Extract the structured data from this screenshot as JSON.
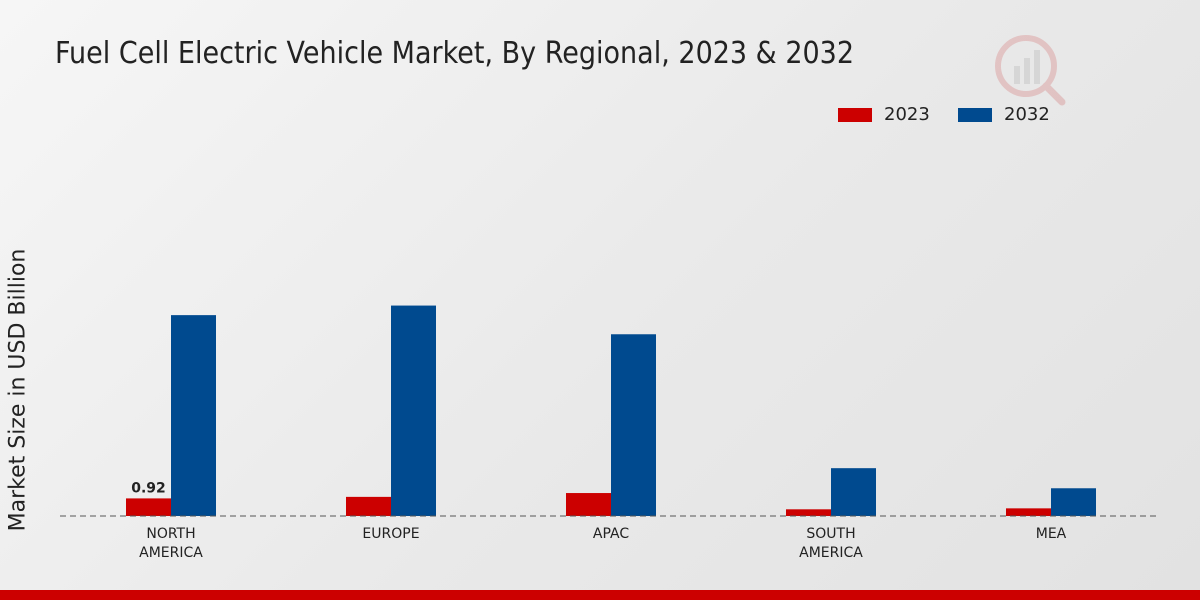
{
  "chart_data": {
    "type": "bar",
    "title": "Fuel Cell Electric Vehicle Market, By Regional, 2023 & 2032",
    "xlabel": "",
    "ylabel": "Market Size in USD Billion",
    "categories": [
      [
        "NORTH",
        "AMERICA"
      ],
      [
        "EUROPE"
      ],
      [
        "APAC"
      ],
      [
        "SOUTH",
        "AMERICA"
      ],
      [
        "MEA"
      ]
    ],
    "series": [
      {
        "name": "2023",
        "color": "#cc0000",
        "values": [
          0.92,
          1.0,
          1.2,
          0.35,
          0.4
        ]
      },
      {
        "name": "2032",
        "color": "#004a8f",
        "values": [
          10.5,
          11.0,
          9.5,
          2.5,
          1.45
        ]
      }
    ],
    "data_labels": [
      {
        "series": 0,
        "index": 0,
        "text": "0.92"
      }
    ],
    "ylim": [
      0,
      11.5
    ],
    "grid": false,
    "legend": "top-right"
  }
}
